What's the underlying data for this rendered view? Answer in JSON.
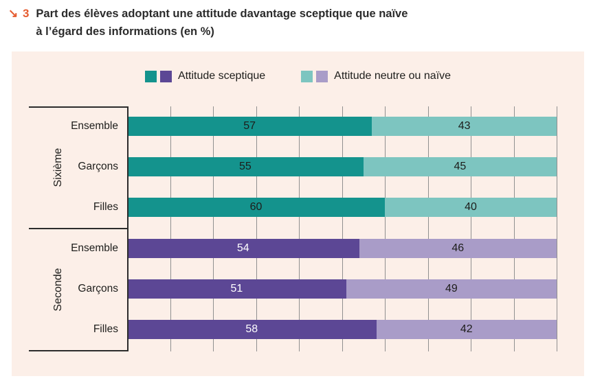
{
  "title": {
    "marker": "↘ 3",
    "line1": "Part des élèves adoptant une attitude davantage sceptique que naïve",
    "line2": "à l’égard des informations (en %)"
  },
  "legend": {
    "items": [
      {
        "label": "Attitude sceptique",
        "swatches": [
          "#14938d",
          "#5c4795"
        ]
      },
      {
        "label": "Attitude neutre ou naïve",
        "swatches": [
          "#7dc5c0",
          "#a99cc8"
        ]
      }
    ]
  },
  "chart_data": {
    "type": "bar",
    "orientation": "horizontal-stacked",
    "series_names": [
      "Attitude sceptique",
      "Attitude neutre ou naïve"
    ],
    "xlim": [
      0,
      100
    ],
    "gridline_step": 10,
    "grid": true,
    "groups": [
      {
        "name": "Sixième",
        "colors": {
          "sceptique": "#14938d",
          "naive": "#7dc5c0"
        },
        "value_text_colors": {
          "sceptique": "#1d1d1b",
          "naive": "#1d1d1b"
        },
        "rows": [
          {
            "label": "Ensemble",
            "sceptique": 57,
            "naive": 43
          },
          {
            "label": "Garçons",
            "sceptique": 55,
            "naive": 45
          },
          {
            "label": "Filles",
            "sceptique": 60,
            "naive": 40
          }
        ]
      },
      {
        "name": "Seconde",
        "colors": {
          "sceptique": "#5c4795",
          "naive": "#a99cc8"
        },
        "value_text_colors": {
          "sceptique": "#ffffff",
          "naive": "#1d1d1b"
        },
        "rows": [
          {
            "label": "Ensemble",
            "sceptique": 54,
            "naive": 46
          },
          {
            "label": "Garçons",
            "sceptique": 51,
            "naive": 49
          },
          {
            "label": "Filles",
            "sceptique": 58,
            "naive": 42
          }
        ]
      }
    ]
  },
  "colors": {
    "panel_background": "#fcefe8",
    "page_background": "#ffffff",
    "gridline": "#8f8f8f",
    "frame": "#2b2b2b",
    "title_text": "#2b2b2b",
    "title_marker": "#e55c30"
  }
}
